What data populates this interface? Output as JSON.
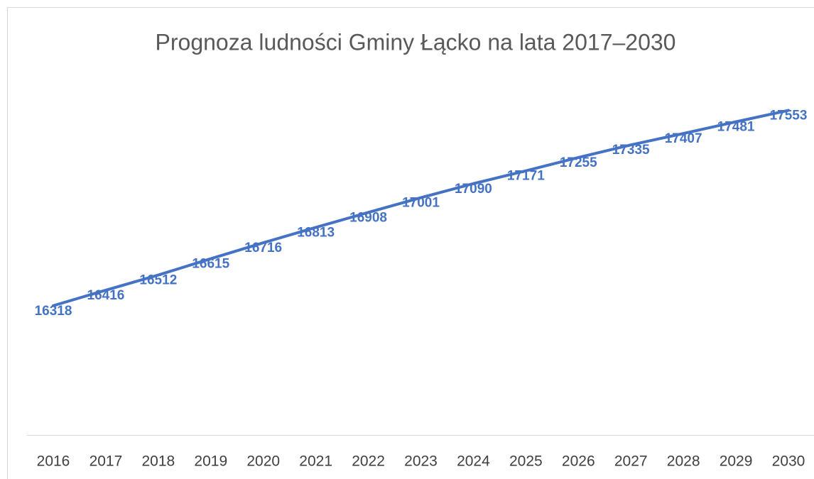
{
  "chart_data": {
    "type": "line",
    "title": "Prognoza ludności Gminy Łącko na lata 2017–2030",
    "categories": [
      "2016",
      "2017",
      "2018",
      "2019",
      "2020",
      "2021",
      "2022",
      "2023",
      "2024",
      "2025",
      "2026",
      "2027",
      "2028",
      "2029",
      "2030"
    ],
    "values": [
      16318,
      16416,
      16512,
      16615,
      16716,
      16813,
      16908,
      17001,
      17090,
      17171,
      17255,
      17335,
      17407,
      17481,
      17553
    ],
    "color": "#4472c4",
    "ylim": [
      15500,
      18000
    ]
  }
}
